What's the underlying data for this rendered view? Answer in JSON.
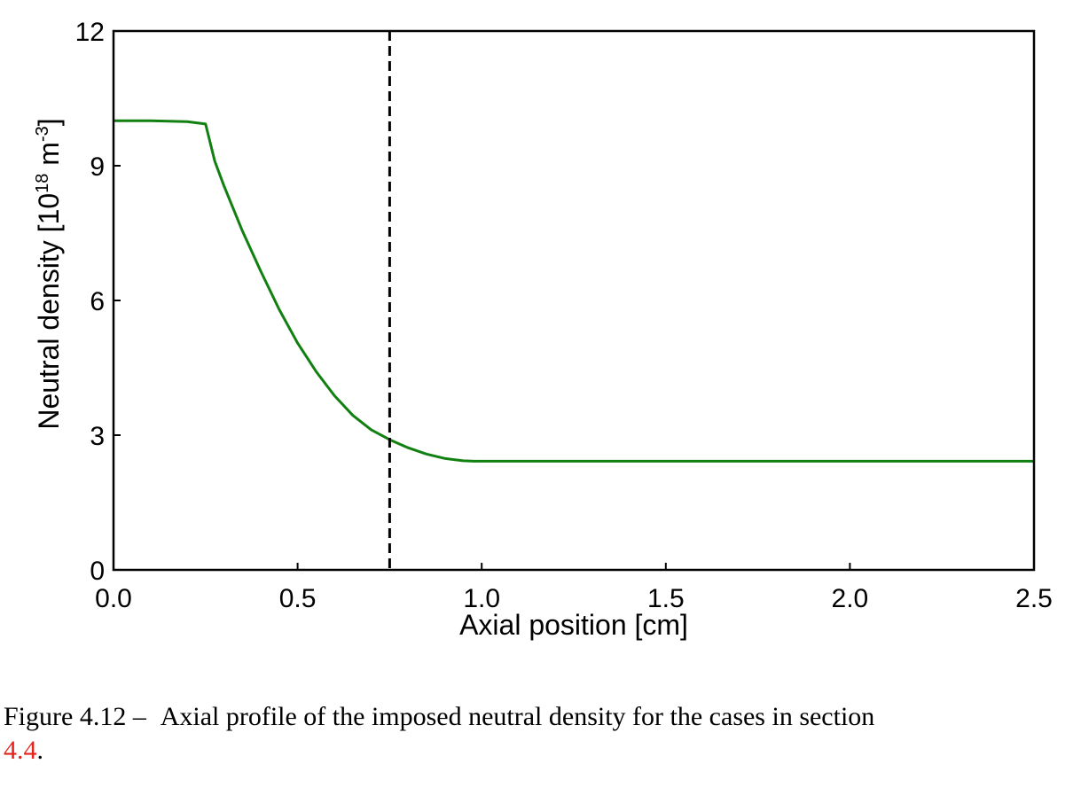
{
  "chart_data": {
    "type": "line",
    "xlabel": "Axial position [cm]",
    "ylabel": "Neutral density [10",
    "ylabel_exp": "18",
    "ylabel_mid": " m",
    "ylabel_exp2": "-3",
    "ylabel_end": "]",
    "xlim": [
      0.0,
      2.5
    ],
    "ylim": [
      0,
      12
    ],
    "xticks": [
      "0.0",
      "0.5",
      "1.0",
      "1.5",
      "2.0",
      "2.5"
    ],
    "xtick_values": [
      0.0,
      0.5,
      1.0,
      1.5,
      2.0,
      2.5
    ],
    "yticks": [
      "0",
      "3",
      "6",
      "9",
      "12"
    ],
    "ytick_values": [
      0,
      3,
      6,
      9,
      12
    ],
    "grid": false,
    "series": [
      {
        "color": "#118011",
        "x": [
          0.0,
          0.05,
          0.1,
          0.15,
          0.2,
          0.25,
          0.275,
          0.3,
          0.35,
          0.4,
          0.45,
          0.5,
          0.55,
          0.6,
          0.65,
          0.7,
          0.75,
          0.8,
          0.85,
          0.9,
          0.95,
          0.98,
          1.0,
          1.5,
          2.0,
          2.5
        ],
        "y": [
          10.0,
          10.0,
          10.0,
          9.99,
          9.98,
          9.93,
          9.1,
          8.55,
          7.55,
          6.65,
          5.8,
          5.05,
          4.42,
          3.88,
          3.44,
          3.12,
          2.9,
          2.72,
          2.58,
          2.48,
          2.43,
          2.42,
          2.42,
          2.42,
          2.42,
          2.42
        ]
      }
    ],
    "vline": {
      "x": 0.75,
      "color": "#000000",
      "style": "dashed"
    }
  },
  "caption": {
    "prefix": "Figure 4.12 –",
    "text": "Axial profile of the imposed neutral density for the cases in section",
    "ref": "4.4",
    "suffix": "."
  }
}
